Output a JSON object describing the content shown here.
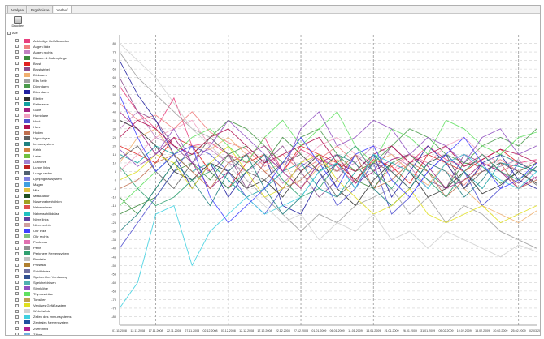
{
  "tabs": [
    "Analyse",
    "Ergebnisse",
    "Verlauf"
  ],
  "toolbar": {
    "print_label": "Drucken"
  },
  "select_all_label": "Alle",
  "legend": {
    "items": [
      {
        "label": "Anbindige Gefäßwunden",
        "color": "#e8407e"
      },
      {
        "label": "Augen links",
        "color": "#f08080"
      },
      {
        "label": "Augen rechts",
        "color": "#c080c0"
      },
      {
        "label": "Blasen- & Gallengänge",
        "color": "#3a8a3a"
      },
      {
        "label": "Brust",
        "color": "#e02020"
      },
      {
        "label": "Brustwirbel",
        "color": "#8a4a8a"
      },
      {
        "label": "Dickdarm",
        "color": "#f0b070"
      },
      {
        "label": "Ella Seite",
        "color": "#a0a0a0"
      },
      {
        "label": "Dünndarm",
        "color": "#4a9a4a"
      },
      {
        "label": "Dünndarm",
        "color": "#2020a0"
      },
      {
        "label": "Eileiter",
        "color": "#303030"
      },
      {
        "label": "Fettmasse",
        "color": "#10a0a0"
      },
      {
        "label": "Galle",
        "color": "#a02080"
      },
      {
        "label": "Harnblase",
        "color": "#f0a0c0"
      },
      {
        "label": "Haut",
        "color": "#5050d0"
      },
      {
        "label": "Herz",
        "color": "#b01050"
      },
      {
        "label": "Hoden",
        "color": "#c07050"
      },
      {
        "label": "Hypophyse",
        "color": "#606060"
      },
      {
        "label": "Immunsystem",
        "color": "#208080"
      },
      {
        "label": "Kehle",
        "color": "#d08040"
      },
      {
        "label": "Leber",
        "color": "#70c040"
      },
      {
        "label": "Luftröhre",
        "color": "#a080d0"
      },
      {
        "label": "Lunge links",
        "color": "#c02020"
      },
      {
        "label": "Lunge rechts",
        "color": "#506070"
      },
      {
        "label": "Lymphgefäßsystem",
        "color": "#8080e0"
      },
      {
        "label": "Magen",
        "color": "#40a0e0"
      },
      {
        "label": "Milz",
        "color": "#e0c040"
      },
      {
        "label": "Muskulatur",
        "color": "#205020"
      },
      {
        "label": "Nasennebenhöhlen",
        "color": "#a0a020"
      },
      {
        "label": "Nebennieren",
        "color": "#e05050"
      },
      {
        "label": "Nebenschilddrüse",
        "color": "#20c0c0"
      },
      {
        "label": "Niere links",
        "color": "#6040a0"
      },
      {
        "label": "Niere rechts",
        "color": "#d0a0a0"
      },
      {
        "label": "Ohr links",
        "color": "#4040ff"
      },
      {
        "label": "Ohr rechts",
        "color": "#80c080"
      },
      {
        "label": "Pankreas",
        "color": "#e070b0"
      },
      {
        "label": "Penis",
        "color": "#909090"
      },
      {
        "label": "Periphere Nervensystem",
        "color": "#30a070"
      },
      {
        "label": "Prostata",
        "color": "#c0c0c0"
      },
      {
        "label": "Prostata",
        "color": "#b08030"
      },
      {
        "label": "Schilddrüse",
        "color": "#7070a0"
      },
      {
        "label": "Speiseröhre Verdauung",
        "color": "#305090"
      },
      {
        "label": "Speicheldrüsen",
        "color": "#50b0b0"
      },
      {
        "label": "Stirnhöhle",
        "color": "#9050c0"
      },
      {
        "label": "Thymusdrüse",
        "color": "#60e060"
      },
      {
        "label": "Tonsillen",
        "color": "#c0a050"
      },
      {
        "label": "Venöses Gefäßsystem",
        "color": "#e0e020"
      },
      {
        "label": "Wirbelsäule",
        "color": "#d0d0d0"
      },
      {
        "label": "Zellen des Immunsystems",
        "color": "#40d0e0"
      },
      {
        "label": "Zentrales Nervensystem",
        "color": "#2050a0"
      },
      {
        "label": "Zwerchfell",
        "color": "#b02090"
      },
      {
        "label": "Zähne",
        "color": "#70b0e0"
      }
    ]
  },
  "chart_data": {
    "type": "line",
    "x": [
      "07.11.2008",
      "12.11.2008",
      "17.11.2008",
      "22.11.2008",
      "27.11.2008",
      "02.12.2008",
      "07.12.2008",
      "12.12.2008",
      "17.12.2008",
      "22.12.2008",
      "27.12.2008",
      "01.01.2009",
      "06.01.2009",
      "11.01.2009",
      "16.01.2009",
      "21.01.2009",
      "26.01.2009",
      "31.01.2009",
      "05.02.2009",
      "10.02.2009",
      "15.02.2009",
      "20.02.2009",
      "25.02.2009",
      "02.03.2009"
    ],
    "ylim": [
      -85,
      85
    ],
    "yticks": [
      80,
      75,
      70,
      65,
      60,
      55,
      50,
      45,
      40,
      35,
      30,
      25,
      20,
      15,
      10,
      5,
      0,
      -5,
      -10,
      -15,
      -20,
      -25,
      -30,
      -35,
      -40,
      -45,
      -50,
      -55,
      -60,
      -65,
      -70,
      -75,
      -80
    ],
    "grid": true,
    "series": [
      {
        "color": "#e8407e",
        "values": [
          55,
          40,
          30,
          48,
          20,
          22,
          15,
          10,
          25,
          5,
          18,
          12,
          8,
          -2,
          15,
          5,
          10,
          20,
          12,
          8,
          15,
          5,
          10,
          12
        ]
      },
      {
        "color": "#f08080",
        "values": [
          45,
          35,
          38,
          30,
          40,
          28,
          22,
          18,
          8,
          15,
          5,
          12,
          20,
          10,
          -5,
          8,
          15,
          10,
          5,
          -3,
          8,
          12,
          5,
          10
        ]
      },
      {
        "color": "#c080c0",
        "values": [
          30,
          40,
          25,
          20,
          15,
          18,
          10,
          5,
          12,
          -2,
          8,
          15,
          5,
          10,
          20,
          15,
          8,
          -5,
          10,
          15,
          5,
          8,
          12,
          0
        ]
      },
      {
        "color": "#3a8a3a",
        "values": [
          -20,
          -15,
          -10,
          5,
          10,
          0,
          15,
          20,
          10,
          25,
          15,
          5,
          10,
          0,
          -5,
          10,
          15,
          5,
          -5,
          10,
          8,
          -2,
          5,
          10
        ]
      },
      {
        "color": "#e02020",
        "values": [
          20,
          15,
          10,
          25,
          20,
          5,
          -5,
          10,
          15,
          5,
          20,
          15,
          10,
          0,
          12,
          8,
          -2,
          15,
          10,
          5,
          12,
          18,
          10,
          5
        ]
      },
      {
        "color": "#8a4a8a",
        "values": [
          60,
          40,
          35,
          20,
          10,
          5,
          15,
          -5,
          10,
          20,
          5,
          -10,
          0,
          15,
          5,
          20,
          10,
          0,
          -5,
          15,
          10,
          5,
          -2,
          8
        ]
      },
      {
        "color": "#f0b070",
        "values": [
          10,
          25,
          30,
          15,
          20,
          18,
          25,
          15,
          5,
          10,
          -5,
          8,
          12,
          5,
          10,
          15,
          5,
          -3,
          10,
          -5,
          -15,
          -20,
          -25,
          -18
        ]
      },
      {
        "color": "#a0a0a0",
        "values": [
          75,
          60,
          50,
          40,
          30,
          25,
          15,
          0,
          -10,
          -20,
          -30,
          -20,
          -25,
          -15,
          -10,
          -5,
          -20,
          -10,
          -25,
          -15,
          -20,
          -30,
          -35,
          -40
        ]
      },
      {
        "color": "#4a9a4a",
        "values": [
          -10,
          -20,
          -5,
          10,
          15,
          25,
          35,
          30,
          20,
          10,
          25,
          30,
          15,
          5,
          10,
          20,
          30,
          25,
          15,
          10,
          20,
          25,
          20,
          30
        ]
      },
      {
        "color": "#2020a0",
        "values": [
          70,
          50,
          35,
          15,
          -5,
          10,
          -10,
          5,
          15,
          -15,
          -20,
          0,
          10,
          -5,
          15,
          -10,
          5,
          20,
          10,
          -5,
          10,
          15,
          0,
          -5
        ]
      },
      {
        "color": "#303030",
        "values": [
          35,
          30,
          20,
          5,
          0,
          10,
          5,
          -5,
          0,
          -10,
          5,
          15,
          -5,
          -15,
          0,
          10,
          5,
          -10,
          -5,
          5,
          -8,
          -3,
          5,
          -2
        ]
      },
      {
        "color": "#10a0a0",
        "values": [
          15,
          10,
          20,
          15,
          5,
          10,
          0,
          -10,
          -5,
          5,
          10,
          -5,
          -10,
          5,
          15,
          5,
          -5,
          10,
          15,
          5,
          -5,
          10,
          8,
          5
        ]
      },
      {
        "color": "#a02080",
        "values": [
          40,
          30,
          15,
          25,
          10,
          -5,
          5,
          15,
          20,
          5,
          -5,
          10,
          15,
          -2,
          5,
          12,
          15,
          8,
          -5,
          0,
          10,
          5,
          -5,
          2
        ]
      },
      {
        "color": "#f0a0c0",
        "values": [
          5,
          15,
          25,
          30,
          35,
          20,
          10,
          15,
          5,
          -5,
          10,
          20,
          25,
          15,
          10,
          5,
          15,
          10,
          20,
          25,
          15,
          10,
          5,
          12
        ]
      },
      {
        "color": "#5050d0",
        "values": [
          -40,
          -25,
          -10,
          5,
          20,
          15,
          5,
          -10,
          -20,
          -5,
          10,
          5,
          -15,
          -5,
          10,
          -20,
          -10,
          5,
          15,
          5,
          -15,
          -5,
          10,
          5
        ]
      },
      {
        "color": "#b01050",
        "values": [
          25,
          35,
          30,
          20,
          15,
          25,
          30,
          20,
          10,
          15,
          20,
          25,
          10,
          5,
          15,
          20,
          10,
          15,
          20,
          8,
          12,
          18,
          15,
          10
        ]
      },
      {
        "color": "#c07050",
        "values": [
          -5,
          0,
          10,
          15,
          5,
          -5,
          10,
          15,
          5,
          -5,
          0,
          10,
          5,
          15,
          -5,
          0,
          10,
          5,
          -10,
          0,
          5,
          10,
          -5,
          0
        ]
      },
      {
        "color": "#606060",
        "values": [
          12,
          20,
          5,
          -5,
          10,
          25,
          15,
          5,
          0,
          10,
          15,
          5,
          -10,
          0,
          10,
          5,
          -5,
          10,
          15,
          -5,
          5,
          10,
          5,
          -3
        ]
      },
      {
        "color": "#208080",
        "values": [
          -30,
          -20,
          -5,
          10,
          0,
          -15,
          5,
          15,
          -5,
          -20,
          -10,
          5,
          15,
          10,
          -5,
          -15,
          -5,
          10,
          5,
          -10,
          0,
          15,
          10,
          5
        ]
      },
      {
        "color": "#40d0e0",
        "values": [
          -75,
          -60,
          -20,
          -15,
          -50,
          -30,
          -20,
          -10,
          -20,
          -15,
          -10,
          5,
          10,
          -5,
          15,
          10,
          5,
          -5,
          10,
          15,
          8,
          0,
          -5,
          5
        ]
      },
      {
        "color": "#e0e020",
        "values": [
          0,
          5,
          15,
          10,
          -5,
          10,
          20,
          5,
          -10,
          -5,
          10,
          15,
          0,
          -10,
          -20,
          -15,
          -5,
          -20,
          -25,
          -20,
          -15,
          -25,
          -20,
          -15
        ]
      },
      {
        "color": "#60e060",
        "values": [
          -15,
          -5,
          5,
          15,
          25,
          30,
          20,
          10,
          25,
          35,
          20,
          30,
          40,
          20,
          10,
          30,
          25,
          15,
          35,
          30,
          20,
          15,
          25,
          28
        ]
      },
      {
        "color": "#4040ff",
        "values": [
          50,
          25,
          5,
          15,
          20,
          -10,
          -25,
          -15,
          -5,
          10,
          25,
          10,
          -5,
          15,
          20,
          0,
          -10,
          5,
          15,
          25,
          10,
          -5,
          0,
          10
        ]
      },
      {
        "color": "#9050c0",
        "values": [
          18,
          8,
          15,
          30,
          10,
          20,
          35,
          25,
          15,
          5,
          30,
          40,
          20,
          25,
          35,
          30,
          15,
          25,
          20,
          10,
          25,
          30,
          15,
          20
        ]
      },
      {
        "color": "#d0d0d0",
        "values": [
          80,
          70,
          60,
          45,
          30,
          20,
          10,
          -5,
          -15,
          -25,
          -20,
          -35,
          -25,
          -30,
          -20,
          -35,
          -30,
          -40,
          -30,
          -35,
          -40,
          -45,
          -38,
          -42
        ]
      },
      {
        "color": "#30a070",
        "values": [
          8,
          -5,
          -15,
          -10,
          0,
          5,
          -5,
          5,
          15,
          0,
          -10,
          -5,
          10,
          20,
          5,
          -5,
          10,
          0,
          -10,
          5,
          15,
          5,
          0,
          8
        ]
      }
    ]
  }
}
